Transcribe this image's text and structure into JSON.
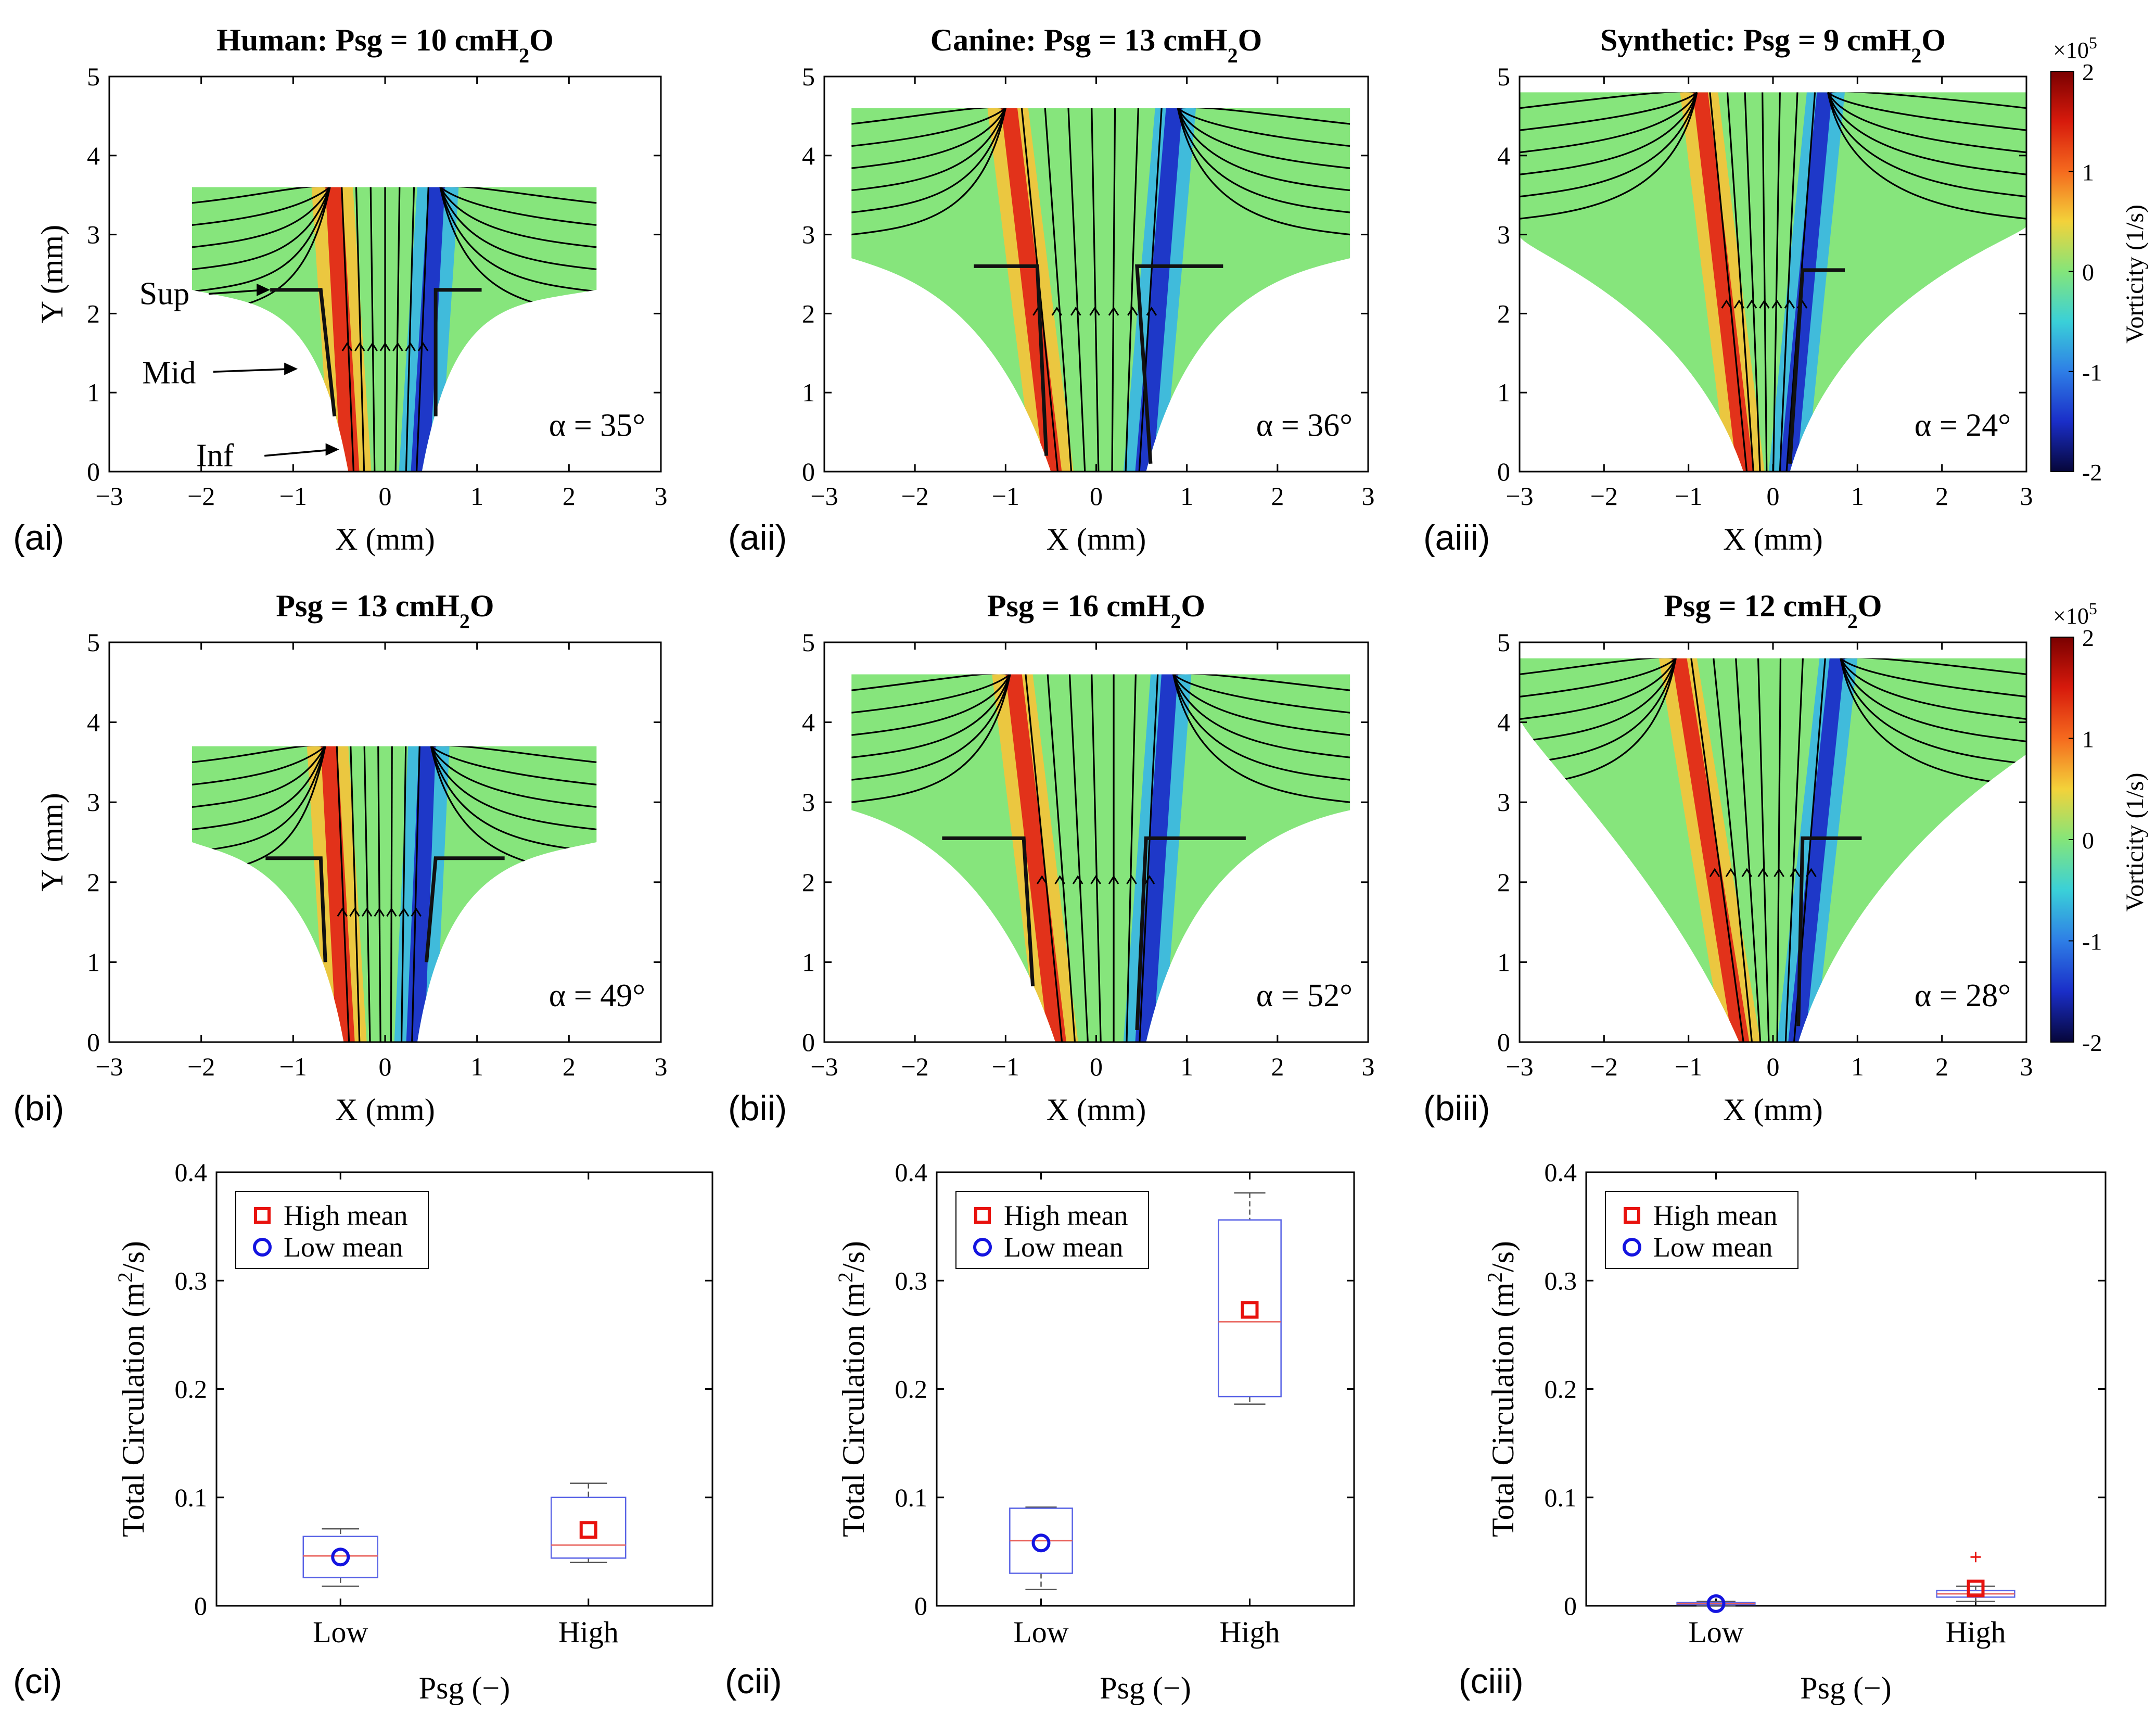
{
  "figure": {
    "colorbar": {
      "label": "Vorticity (1/s)",
      "exponent_base": "×10",
      "exponent": "5",
      "ticks": [
        "2",
        "1",
        "0",
        "-1",
        "-2"
      ],
      "colors": [
        "#7a0000",
        "#d71a0c",
        "#f56a1e",
        "#f3d23a",
        "#84e57a",
        "#3ad0d8",
        "#2e7ee6",
        "#1a2ec8",
        "#06063a"
      ]
    },
    "legend": {
      "high": "High mean",
      "low": "Low mean"
    },
    "colors": {
      "high_mean": "#e8120e",
      "low_mean": "#1414e0",
      "box": "#5a64e6",
      "median": "#e8605a",
      "field_base": "#86e57c",
      "walls": "#111111"
    }
  },
  "chart_data": [
    {
      "id": "ai",
      "type": "vector-field",
      "panel_label": "(ai)",
      "title": "Human: Psg = 10 cmH",
      "title_sub": "2",
      "title_tail": "O",
      "xlabel": "X (mm)",
      "ylabel": "Y (mm)",
      "xlim": [
        -3,
        3
      ],
      "ylim": [
        0,
        5
      ],
      "xticks": [
        "−3",
        "−2",
        "−1",
        "0",
        "1",
        "2",
        "3"
      ],
      "yticks": [
        "0",
        "1",
        "2",
        "3",
        "4",
        "5"
      ],
      "annotation": "α = 35°",
      "region_labels": [
        "Sup",
        "Mid",
        "Inf"
      ],
      "field": {
        "top": 3.6,
        "left": -2.1,
        "right": 2.3,
        "left_low": 2.3,
        "right_low": 2.3,
        "shoulder": 0.8
      },
      "walls": {
        "left": [
          [
            -1.25,
            2.3
          ],
          [
            -0.7,
            2.3
          ],
          [
            -0.55,
            0.7
          ]
        ],
        "right": [
          [
            1.05,
            2.3
          ],
          [
            0.55,
            2.3
          ],
          [
            0.55,
            0.7
          ]
        ]
      },
      "jet": {
        "xl_top": -0.55,
        "xr_top": 0.55,
        "xl_bot": -0.4,
        "xr_bot": 0.4
      }
    },
    {
      "id": "aii",
      "type": "vector-field",
      "panel_label": "(aii)",
      "title": "Canine: Psg = 13 cmH",
      "title_sub": "2",
      "title_tail": "O",
      "xlabel": "X (mm)",
      "ylabel": "",
      "xlim": [
        -3,
        3
      ],
      "ylim": [
        0,
        5
      ],
      "xticks": [
        "−3",
        "−2",
        "−1",
        "0",
        "1",
        "2",
        "3"
      ],
      "yticks": [
        "0",
        "1",
        "2",
        "3",
        "4",
        "5"
      ],
      "annotation": "α = 36°",
      "region_labels": [],
      "field": {
        "top": 4.6,
        "left": -2.7,
        "right": 2.8,
        "left_low": 2.7,
        "right_low": 2.7,
        "shoulder": 1.2
      },
      "walls": {
        "left": [
          [
            -1.35,
            2.6
          ],
          [
            -0.65,
            2.6
          ],
          [
            -0.55,
            0.2
          ]
        ],
        "right": [
          [
            1.4,
            2.6
          ],
          [
            0.45,
            2.6
          ],
          [
            0.6,
            0.1
          ]
        ]
      },
      "jet": {
        "xl_top": -0.95,
        "xr_top": 0.85,
        "xl_bot": -0.5,
        "xr_bot": 0.55
      }
    },
    {
      "id": "aiii",
      "type": "vector-field",
      "panel_label": "(aiii)",
      "title": "Synthetic: Psg = 9 cmH",
      "title_sub": "2",
      "title_tail": "O",
      "xlabel": "X (mm)",
      "ylabel": "",
      "xlim": [
        -3,
        3
      ],
      "ylim": [
        0,
        5
      ],
      "xticks": [
        "−3",
        "−2",
        "−1",
        "0",
        "1",
        "2",
        "3"
      ],
      "yticks": [
        "0",
        "1",
        "2",
        "3",
        "4",
        "5"
      ],
      "annotation": "α = 24°",
      "region_labels": [],
      "field": {
        "top": 4.8,
        "left": -3.0,
        "right": 3.0,
        "left_low": 3.0,
        "right_low": 3.1,
        "shoulder": 2.2
      },
      "walls": {
        "left": [],
        "right": [
          [
            0.85,
            2.55
          ],
          [
            0.35,
            2.55
          ],
          [
            0.2,
            0.1
          ]
        ]
      },
      "jet": {
        "xl_top": -0.85,
        "xr_top": 0.6,
        "xl_bot": -0.35,
        "xr_bot": 0.2
      }
    },
    {
      "id": "bi",
      "type": "vector-field",
      "panel_label": "(bi)",
      "title": "Psg = 13 cmH",
      "title_sub": "2",
      "title_tail": "O",
      "xlabel": "X (mm)",
      "ylabel": "Y (mm)",
      "xlim": [
        -3,
        3
      ],
      "ylim": [
        0,
        5
      ],
      "xticks": [
        "−3",
        "−2",
        "−1",
        "0",
        "1",
        "2",
        "3"
      ],
      "yticks": [
        "0",
        "1",
        "2",
        "3",
        "4",
        "5"
      ],
      "annotation": "α = 49°",
      "region_labels": [],
      "field": {
        "top": 3.7,
        "left": -2.1,
        "right": 2.3,
        "left_low": 2.5,
        "right_low": 2.5,
        "shoulder": 1.0
      },
      "walls": {
        "left": [
          [
            -1.3,
            2.3
          ],
          [
            -0.7,
            2.3
          ],
          [
            -0.65,
            1.0
          ]
        ],
        "right": [
          [
            1.3,
            2.3
          ],
          [
            0.55,
            2.3
          ],
          [
            0.45,
            1.0
          ]
        ]
      },
      "jet": {
        "xl_top": -0.6,
        "xr_top": 0.45,
        "xl_bot": -0.45,
        "xr_bot": 0.35
      }
    },
    {
      "id": "bii",
      "type": "vector-field",
      "panel_label": "(bii)",
      "title": "Psg = 16 cmH",
      "title_sub": "2",
      "title_tail": "O",
      "xlabel": "X (mm)",
      "ylabel": "",
      "xlim": [
        -3,
        3
      ],
      "ylim": [
        0,
        5
      ],
      "xticks": [
        "−3",
        "−2",
        "−1",
        "0",
        "1",
        "2",
        "3"
      ],
      "yticks": [
        "0",
        "1",
        "2",
        "3",
        "4",
        "5"
      ],
      "annotation": "α = 52°",
      "region_labels": [],
      "field": {
        "top": 4.6,
        "left": -2.7,
        "right": 2.8,
        "left_low": 2.9,
        "right_low": 2.9,
        "shoulder": 1.2
      },
      "walls": {
        "left": [
          [
            -1.7,
            2.55
          ],
          [
            -0.8,
            2.55
          ],
          [
            -0.7,
            0.7
          ]
        ],
        "right": [
          [
            1.65,
            2.55
          ],
          [
            0.55,
            2.55
          ],
          [
            0.45,
            0.15
          ]
        ]
      },
      "jet": {
        "xl_top": -0.9,
        "xr_top": 0.8,
        "xl_bot": -0.45,
        "xr_bot": 0.55
      }
    },
    {
      "id": "biii",
      "type": "vector-field",
      "panel_label": "(biii)",
      "title": "Psg = 12 cmH",
      "title_sub": "2",
      "title_tail": "O",
      "xlabel": "X (mm)",
      "ylabel": "",
      "xlim": [
        -3,
        3
      ],
      "ylim": [
        0,
        5
      ],
      "xticks": [
        "−3",
        "−2",
        "−1",
        "0",
        "1",
        "2",
        "3"
      ],
      "yticks": [
        "0",
        "1",
        "2",
        "3",
        "4",
        "5"
      ],
      "annotation": "α = 28°",
      "region_labels": [],
      "field": {
        "top": 4.8,
        "left": -3.0,
        "right": 3.0,
        "left_low": 4.1,
        "right_low": 3.6,
        "shoulder": 2.0
      },
      "walls": {
        "left": [],
        "right": [
          [
            1.05,
            2.55
          ],
          [
            0.35,
            2.55
          ],
          [
            0.3,
            0.2
          ]
        ]
      },
      "jet": {
        "xl_top": -1.1,
        "xr_top": 0.75,
        "xl_bot": -0.4,
        "xr_bot": 0.3
      }
    },
    {
      "id": "ci",
      "type": "box",
      "panel_label": "(ci)",
      "xlabel": "Psg (−)",
      "ylabel_main": "Total Circulation (m",
      "ylabel_sup": "2",
      "ylabel_tail": "/s)",
      "categories": [
        "Low",
        "High"
      ],
      "ylim": [
        0,
        0.4
      ],
      "yticks": [
        "0",
        "0.1",
        "0.2",
        "0.3",
        "0.4"
      ],
      "boxes": [
        {
          "min": 0.018,
          "q1": 0.026,
          "median": 0.046,
          "q3": 0.064,
          "max": 0.071
        },
        {
          "min": 0.04,
          "q1": 0.044,
          "median": 0.056,
          "q3": 0.1,
          "max": 0.113
        }
      ],
      "means": {
        "low": 0.045,
        "high": 0.07
      },
      "outliers": []
    },
    {
      "id": "cii",
      "type": "box",
      "panel_label": "(cii)",
      "xlabel": "Psg (−)",
      "ylabel_main": "Total Circulation (m",
      "ylabel_sup": "2",
      "ylabel_tail": "/s)",
      "categories": [
        "Low",
        "High"
      ],
      "ylim": [
        0,
        0.4
      ],
      "yticks": [
        "0",
        "0.1",
        "0.2",
        "0.3",
        "0.4"
      ],
      "boxes": [
        {
          "min": 0.015,
          "q1": 0.03,
          "median": 0.06,
          "q3": 0.09,
          "max": 0.091
        },
        {
          "min": 0.186,
          "q1": 0.193,
          "median": 0.262,
          "q3": 0.356,
          "max": 0.381
        }
      ],
      "means": {
        "low": 0.058,
        "high": 0.273
      },
      "outliers": []
    },
    {
      "id": "ciii",
      "type": "box",
      "panel_label": "(ciii)",
      "xlabel": "Psg (−)",
      "ylabel_main": "Total Circulation (m",
      "ylabel_sup": "2",
      "ylabel_tail": "/s)",
      "categories": [
        "Low",
        "High"
      ],
      "ylim": [
        0,
        0.4
      ],
      "yticks": [
        "0",
        "0.1",
        "0.2",
        "0.3",
        "0.4"
      ],
      "boxes": [
        {
          "min": 0.0,
          "q1": 0.001,
          "median": 0.002,
          "q3": 0.003,
          "max": 0.004
        },
        {
          "min": 0.004,
          "q1": 0.008,
          "median": 0.011,
          "q3": 0.014,
          "max": 0.018
        }
      ],
      "means": {
        "low": 0.002,
        "high": 0.016
      },
      "outliers": [
        {
          "category": "High",
          "value": 0.045
        }
      ]
    }
  ]
}
